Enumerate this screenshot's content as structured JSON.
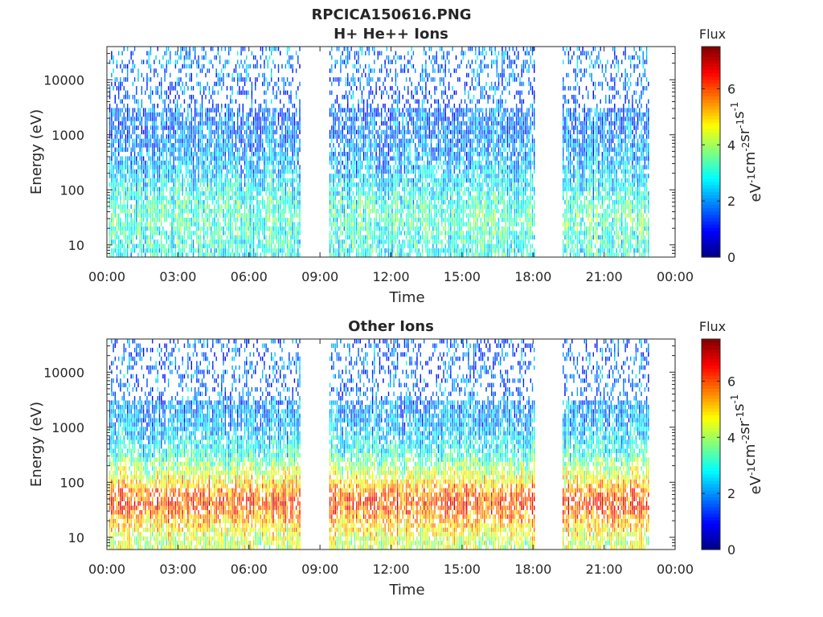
{
  "figure": {
    "title": "RPCICA150616.PNG"
  },
  "chart_data": [
    {
      "type": "heatmap",
      "title": "H+ He++ Ions",
      "xlabel": "Time",
      "ylabel": "Energy (eV)",
      "x_ticks": [
        "00:00",
        "03:00",
        "06:00",
        "09:00",
        "12:00",
        "15:00",
        "18:00",
        "21:00",
        "00:00"
      ],
      "xlim_hours": [
        0,
        24
      ],
      "yscale": "log",
      "ylim": [
        6,
        40000
      ],
      "y_ticks": [
        10,
        100,
        1000,
        10000
      ],
      "y_tick_labels": [
        "10",
        "100",
        "1000",
        "10000"
      ],
      "colorbar": {
        "label": "Flux",
        "unit_base": "eV",
        "unit_parts": [
          {
            "base": "eV",
            "exp": "-1"
          },
          {
            "base": "cm",
            "exp": "-2"
          },
          {
            "base": "sr",
            "exp": "-1"
          },
          {
            "base": "s",
            "exp": "-1"
          }
        ],
        "range": [
          0,
          7.5
        ],
        "ticks": [
          0,
          2,
          4,
          6
        ],
        "tick_labels": [
          "0",
          "2",
          "4",
          "6"
        ],
        "colormap": "jet"
      },
      "coverage_hours": [
        [
          0.1,
          8.2
        ],
        [
          9.4,
          18.05
        ],
        [
          19.25,
          22.85
        ]
      ],
      "spectrum_profile": [
        {
          "energy": 8,
          "flux": 3.0
        },
        {
          "energy": 30,
          "flux": 3.4
        },
        {
          "energy": 100,
          "flux": 2.8
        },
        {
          "energy": 300,
          "flux": 2.2
        },
        {
          "energy": 1000,
          "flux": 1.8
        },
        {
          "energy": 5000,
          "flux": 1.5
        },
        {
          "energy": 20000,
          "flux": 1.8
        }
      ]
    },
    {
      "type": "heatmap",
      "title": "Other Ions",
      "xlabel": "Time",
      "ylabel": "Energy (eV)",
      "x_ticks": [
        "00:00",
        "03:00",
        "06:00",
        "09:00",
        "12:00",
        "15:00",
        "18:00",
        "21:00",
        "00:00"
      ],
      "xlim_hours": [
        0,
        24
      ],
      "yscale": "log",
      "ylim": [
        6,
        40000
      ],
      "y_ticks": [
        10,
        100,
        1000,
        10000
      ],
      "y_tick_labels": [
        "10",
        "100",
        "1000",
        "10000"
      ],
      "colorbar": {
        "label": "Flux",
        "unit_parts": [
          {
            "base": "eV",
            "exp": "-1"
          },
          {
            "base": "cm",
            "exp": "-2"
          },
          {
            "base": "sr",
            "exp": "-1"
          },
          {
            "base": "s",
            "exp": "-1"
          }
        ],
        "range": [
          0,
          7.5
        ],
        "ticks": [
          0,
          2,
          4,
          6
        ],
        "tick_labels": [
          "0",
          "2",
          "4",
          "6"
        ],
        "colormap": "jet"
      },
      "coverage_hours": [
        [
          0.1,
          8.2
        ],
        [
          9.4,
          18.05
        ],
        [
          19.25,
          22.85
        ]
      ],
      "spectrum_profile": [
        {
          "energy": 8,
          "flux": 4.2
        },
        {
          "energy": 40,
          "flux": 6.2
        },
        {
          "energy": 100,
          "flux": 4.8
        },
        {
          "energy": 300,
          "flux": 3.0
        },
        {
          "energy": 1000,
          "flux": 2.2
        },
        {
          "energy": 5000,
          "flux": 1.6
        },
        {
          "energy": 20000,
          "flux": 1.5
        }
      ]
    }
  ]
}
